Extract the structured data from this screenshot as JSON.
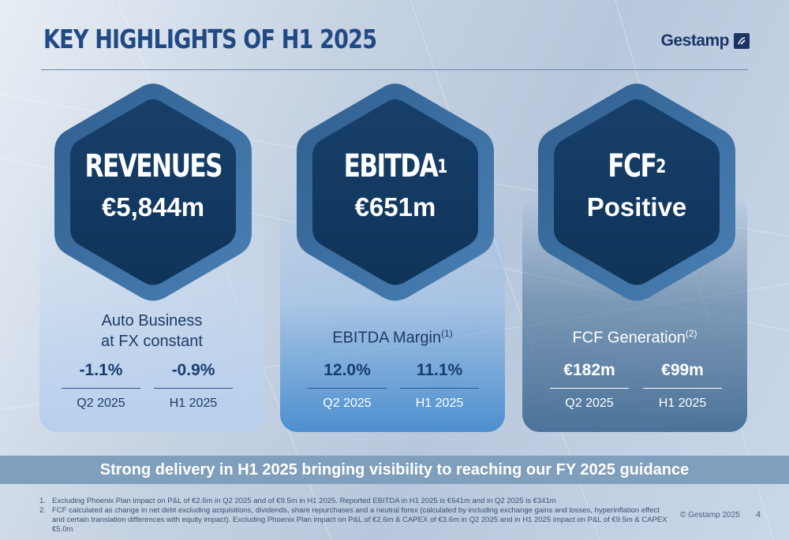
{
  "header": {
    "title": "KEY HIGHLIGHTS OF H1 2025",
    "logo_text": "Gestamp"
  },
  "colors": {
    "title": "#1f4a86",
    "hex_outer": "#3d6e9e",
    "hex_inner": "#123b66",
    "banner": "#7f9fbd"
  },
  "cards": [
    {
      "label": "REVENUES",
      "sup": "",
      "value": "€5,844m",
      "subtitle_line1": "Auto Business",
      "subtitle_line2": "at FX constant",
      "subtitle_sup": "",
      "metrics": [
        {
          "value": "-1.1%",
          "label": "Q2 2025"
        },
        {
          "value": "-0.9%",
          "label": "H1 2025"
        }
      ]
    },
    {
      "label": "EBITDA",
      "sup": "1",
      "value": "€651m",
      "subtitle_line1": "EBITDA Margin",
      "subtitle_line2": "",
      "subtitle_sup": "(1)",
      "metrics": [
        {
          "value": "12.0%",
          "label": "Q2 2025"
        },
        {
          "value": "11.1%",
          "label": "H1 2025"
        }
      ]
    },
    {
      "label": "FCF",
      "sup": "2",
      "value": "Positive",
      "subtitle_line1": "FCF Generation",
      "subtitle_line2": "",
      "subtitle_sup": "(2)",
      "metrics": [
        {
          "value": "€182m",
          "label": "Q2 2025"
        },
        {
          "value": "€99m",
          "label": "H1 2025"
        }
      ]
    }
  ],
  "banner": "Strong delivery in H1 2025 bringing visibility to reaching our FY 2025 guidance",
  "footnotes": [
    {
      "num": "1.",
      "text": "Excluding Phoenix Plan impact on P&L of €2.6m in Q2 2025 and of €9.5m in H1 2025. Reported EBITDA in H1 2025 is €641m and in Q2 2025 is €341m"
    },
    {
      "num": "2.",
      "text": "FCF calculated as change in net debt excluding acquisitions, dividends, share repurchases and a neutral forex (calculated by including exchange gains and losses, hyperinflation effect and certain translation differences with equity impact). Excluding Phoenix Plan impact on P&L of €2.6m & CAPEX of €3.6m in Q2 2025 and in H1 2025 impact on P&L of €9.5m & CAPEX €5.0m"
    }
  ],
  "copyright": "© Gestamp 2025",
  "page_number": "4"
}
